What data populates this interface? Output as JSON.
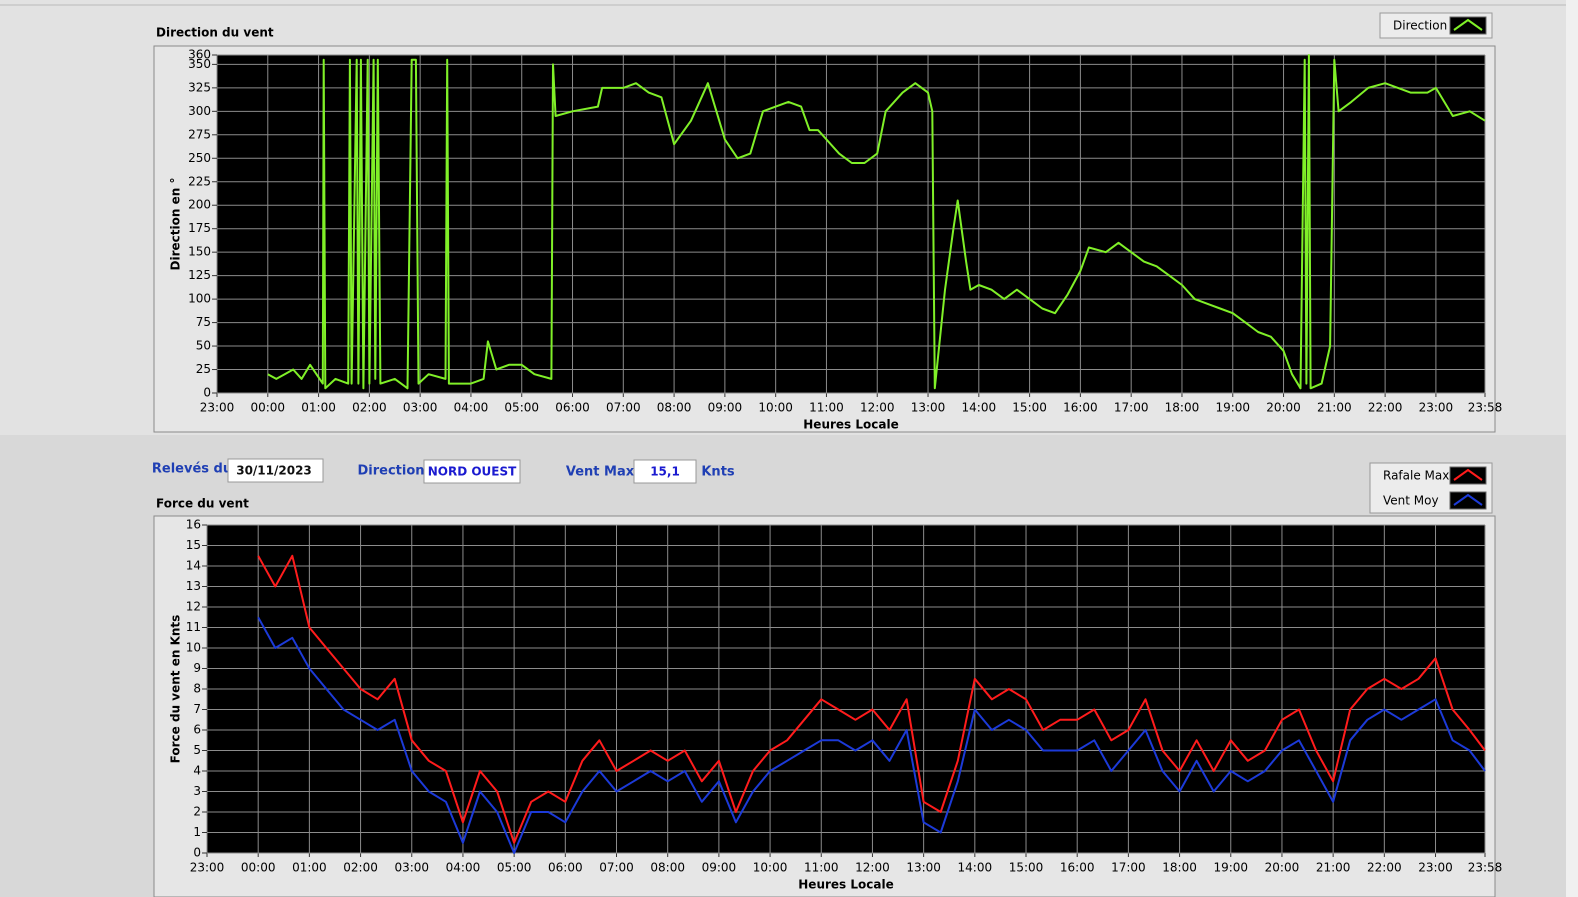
{
  "controls": {
    "date_label": "Relevés du",
    "date": "30/11/2023",
    "direction_label": "Direction",
    "direction": "NORD OUEST",
    "max_label": "Vent Max",
    "max": "15,1",
    "unit": "Knts"
  },
  "chart_data": [
    {
      "type": "line",
      "title": "Direction du vent",
      "y_label": "Direction en °",
      "x_label": "Heures Locale",
      "grid": true,
      "legend": "top-right",
      "xlim": [
        "23:00",
        "23:58"
      ],
      "xticks": [
        "23:00",
        "00:00",
        "01:00",
        "02:00",
        "03:00",
        "04:00",
        "05:00",
        "06:00",
        "07:00",
        "08:00",
        "09:00",
        "10:00",
        "11:00",
        "12:00",
        "13:00",
        "14:00",
        "15:00",
        "16:00",
        "17:00",
        "18:00",
        "19:00",
        "20:00",
        "21:00",
        "22:00",
        "23:00",
        "23:58"
      ],
      "ylim": [
        0,
        360
      ],
      "yticks": [
        0,
        25,
        50,
        75,
        100,
        125,
        150,
        175,
        200,
        225,
        250,
        275,
        300,
        325,
        350,
        360
      ],
      "x": [
        "00:00",
        "00:10",
        "00:20",
        "00:30",
        "00:40",
        "00:50",
        "01:05",
        "01:06",
        "01:08",
        "01:20",
        "01:35",
        "01:37",
        "01:39",
        "01:45",
        "01:47",
        "01:50",
        "01:53",
        "01:58",
        "02:00",
        "02:05",
        "02:07",
        "02:10",
        "02:13",
        "02:30",
        "02:45",
        "02:50",
        "02:55",
        "02:58",
        "03:10",
        "03:30",
        "03:32",
        "03:34",
        "04:00",
        "04:15",
        "04:20",
        "04:30",
        "04:45",
        "05:00",
        "05:15",
        "05:35",
        "05:37",
        "05:40",
        "06:00",
        "06:30",
        "06:35",
        "07:00",
        "07:15",
        "07:30",
        "07:45",
        "08:00",
        "08:20",
        "08:40",
        "08:50",
        "09:00",
        "09:15",
        "09:30",
        "09:45",
        "10:00",
        "10:15",
        "10:30",
        "10:40",
        "10:50",
        "11:00",
        "11:15",
        "11:30",
        "11:45",
        "12:00",
        "12:10",
        "12:30",
        "12:45",
        "13:00",
        "13:05",
        "13:08",
        "13:12",
        "13:20",
        "13:30",
        "13:35",
        "13:45",
        "13:50",
        "14:00",
        "14:15",
        "14:30",
        "14:45",
        "15:00",
        "15:15",
        "15:30",
        "15:45",
        "16:00",
        "16:10",
        "16:30",
        "16:45",
        "17:00",
        "17:15",
        "17:30",
        "17:45",
        "18:00",
        "18:15",
        "18:30",
        "18:45",
        "19:00",
        "19:15",
        "19:30",
        "19:45",
        "20:00",
        "20:10",
        "20:20",
        "20:25",
        "20:27",
        "20:30",
        "20:32",
        "20:45",
        "20:55",
        "21:00",
        "21:05",
        "21:20",
        "21:40",
        "22:00",
        "22:30",
        "22:50",
        "23:00",
        "23:20",
        "23:40",
        "23:58"
      ],
      "series": [
        {
          "name": "Direction",
          "color": "#80f028",
          "values": [
            20,
            15,
            20,
            25,
            15,
            30,
            10,
            355,
            5,
            15,
            10,
            355,
            10,
            355,
            10,
            355,
            5,
            355,
            10,
            355,
            15,
            355,
            10,
            15,
            5,
            355,
            355,
            10,
            20,
            15,
            355,
            10,
            10,
            15,
            55,
            25,
            30,
            30,
            20,
            15,
            350,
            295,
            300,
            305,
            325,
            325,
            330,
            320,
            315,
            265,
            290,
            330,
            300,
            270,
            250,
            255,
            300,
            305,
            310,
            305,
            280,
            280,
            270,
            255,
            245,
            245,
            255,
            300,
            320,
            330,
            320,
            300,
            5,
            40,
            110,
            175,
            205,
            140,
            110,
            115,
            110,
            100,
            110,
            100,
            90,
            85,
            105,
            130,
            155,
            150,
            160,
            150,
            140,
            135,
            125,
            115,
            100,
            95,
            90,
            85,
            75,
            65,
            60,
            45,
            20,
            5,
            355,
            10,
            360,
            5,
            10,
            50,
            355,
            300,
            310,
            325,
            330,
            320,
            320,
            325,
            295,
            300,
            290
          ]
        }
      ]
    },
    {
      "type": "line",
      "title": "Force du vent",
      "y_label": "Force du vent en Knts",
      "x_label": "Heures Locale",
      "grid": true,
      "legend": "top-right",
      "xlim": [
        "23:00",
        "23:58"
      ],
      "xticks": [
        "23:00",
        "00:00",
        "01:00",
        "02:00",
        "03:00",
        "04:00",
        "05:00",
        "06:00",
        "07:00",
        "08:00",
        "09:00",
        "10:00",
        "11:00",
        "12:00",
        "13:00",
        "14:00",
        "15:00",
        "16:00",
        "17:00",
        "18:00",
        "19:00",
        "20:00",
        "21:00",
        "22:00",
        "23:00",
        "23:58"
      ],
      "ylim": [
        0,
        16
      ],
      "yticks": [
        0,
        1,
        2,
        3,
        4,
        5,
        6,
        7,
        8,
        9,
        10,
        11,
        12,
        13,
        14,
        15,
        16
      ],
      "x": [
        "00:00",
        "00:20",
        "00:40",
        "01:00",
        "01:20",
        "01:40",
        "02:00",
        "02:20",
        "02:40",
        "03:00",
        "03:20",
        "03:40",
        "04:00",
        "04:20",
        "04:40",
        "05:00",
        "05:20",
        "05:40",
        "06:00",
        "06:20",
        "06:40",
        "07:00",
        "07:20",
        "07:40",
        "08:00",
        "08:20",
        "08:40",
        "09:00",
        "09:20",
        "09:40",
        "10:00",
        "10:20",
        "10:40",
        "11:00",
        "11:20",
        "11:40",
        "12:00",
        "12:20",
        "12:40",
        "13:00",
        "13:20",
        "13:40",
        "14:00",
        "14:20",
        "14:40",
        "15:00",
        "15:20",
        "15:40",
        "16:00",
        "16:20",
        "16:40",
        "17:00",
        "17:20",
        "17:40",
        "18:00",
        "18:20",
        "18:40",
        "19:00",
        "19:20",
        "19:40",
        "20:00",
        "20:20",
        "20:40",
        "21:00",
        "21:20",
        "21:40",
        "22:00",
        "22:20",
        "22:40",
        "23:00",
        "23:20",
        "23:40",
        "23:58"
      ],
      "series": [
        {
          "name": "Rafale Max",
          "color": "#ff1c1c",
          "values": [
            14.5,
            13,
            14.5,
            11,
            10,
            9,
            8,
            7.5,
            8.5,
            5.5,
            4.5,
            4,
            1.5,
            4,
            3,
            0.5,
            2.5,
            3,
            2.5,
            4.5,
            5.5,
            4,
            4.5,
            5,
            4.5,
            5,
            3.5,
            4.5,
            2,
            4,
            5,
            5.5,
            6.5,
            7.5,
            7,
            6.5,
            7,
            6,
            7.5,
            2.5,
            2,
            4.5,
            8.5,
            7.5,
            8,
            7.5,
            6,
            6.5,
            6.5,
            7,
            5.5,
            6,
            7.5,
            5,
            4,
            5.5,
            4,
            5.5,
            4.5,
            5,
            6.5,
            7,
            5,
            3.5,
            7,
            8,
            8.5,
            8,
            8.5,
            9.5,
            7,
            6,
            5
          ]
        },
        {
          "name": "Vent Moy",
          "color": "#1c3ad8",
          "values": [
            11.5,
            10,
            10.5,
            9,
            8,
            7,
            6.5,
            6,
            6.5,
            4,
            3,
            2.5,
            0.5,
            3,
            2,
            0,
            2,
            2,
            1.5,
            3,
            4,
            3,
            3.5,
            4,
            3.5,
            4,
            2.5,
            3.5,
            1.5,
            3,
            4,
            4.5,
            5,
            5.5,
            5.5,
            5,
            5.5,
            4.5,
            6,
            1.5,
            1,
            3.5,
            7,
            6,
            6.5,
            6,
            5,
            5,
            5,
            5.5,
            4,
            5,
            6,
            4,
            3,
            4.5,
            3,
            4,
            3.5,
            4,
            5,
            5.5,
            4,
            2.5,
            5.5,
            6.5,
            7,
            6.5,
            7,
            7.5,
            5.5,
            5,
            4
          ]
        }
      ]
    }
  ]
}
